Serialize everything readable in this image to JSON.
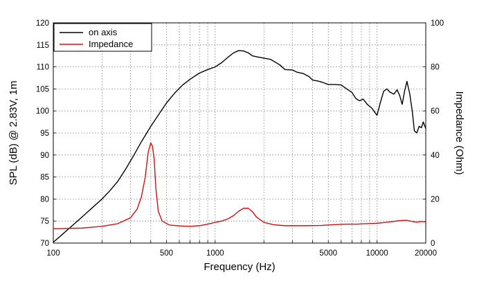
{
  "chart_data": {
    "type": "line",
    "title": "",
    "xlabel": "Frequency (Hz)",
    "ylabel_left": "SPL (dB) @ 2.83V, 1m",
    "ylabel_right": "Impedance (Ohm)",
    "x_scale": "log",
    "xlim": [
      100,
      20000
    ],
    "ylim_left": [
      70,
      120
    ],
    "ylim_right": [
      0,
      100
    ],
    "grid": true,
    "legend_placement": "top-left",
    "x_ticks": [
      100,
      500,
      1000,
      5000,
      10000,
      20000
    ],
    "x_tick_labels": [
      "100",
      "500",
      "1000",
      "5000",
      "10000",
      "20000"
    ],
    "y_left_ticks": [
      "70",
      "75",
      "80",
      "85",
      "90",
      "95",
      "100",
      "105",
      "110",
      "115",
      "120"
    ],
    "y_right_ticks": [
      "0",
      "20",
      "40",
      "60",
      "80",
      "100"
    ],
    "series": [
      {
        "name": "on axis",
        "axis": "left",
        "color": "#000000",
        "points": [
          [
            100,
            70.2
          ],
          [
            110,
            71.5
          ],
          [
            125,
            73.3
          ],
          [
            140,
            74.9
          ],
          [
            160,
            76.8
          ],
          [
            180,
            78.5
          ],
          [
            200,
            80.0
          ],
          [
            225,
            82.0
          ],
          [
            250,
            84.0
          ],
          [
            280,
            86.8
          ],
          [
            315,
            90.0
          ],
          [
            350,
            93.0
          ],
          [
            400,
            96.5
          ],
          [
            450,
            99.3
          ],
          [
            500,
            101.8
          ],
          [
            560,
            104.0
          ],
          [
            630,
            105.9
          ],
          [
            700,
            107.2
          ],
          [
            800,
            108.6
          ],
          [
            900,
            109.4
          ],
          [
            1000,
            110.0
          ],
          [
            1100,
            111.0
          ],
          [
            1200,
            112.2
          ],
          [
            1300,
            113.2
          ],
          [
            1400,
            113.7
          ],
          [
            1500,
            113.6
          ],
          [
            1600,
            113.2
          ],
          [
            1700,
            112.5
          ],
          [
            1800,
            112.3
          ],
          [
            2000,
            112.0
          ],
          [
            2200,
            111.7
          ],
          [
            2500,
            110.5
          ],
          [
            2700,
            109.4
          ],
          [
            3000,
            109.3
          ],
          [
            3200,
            108.8
          ],
          [
            3500,
            108.5
          ],
          [
            3800,
            107.8
          ],
          [
            4000,
            107.0
          ],
          [
            4300,
            106.8
          ],
          [
            4600,
            106.5
          ],
          [
            5000,
            106.0
          ],
          [
            5500,
            106.0
          ],
          [
            6000,
            105.9
          ],
          [
            6500,
            105.0
          ],
          [
            7000,
            104.2
          ],
          [
            7400,
            102.8
          ],
          [
            7800,
            102.3
          ],
          [
            8200,
            102.7
          ],
          [
            8700,
            101.5
          ],
          [
            9300,
            100.6
          ],
          [
            10000,
            99.0
          ],
          [
            10500,
            102.0
          ],
          [
            11000,
            104.5
          ],
          [
            11500,
            105.0
          ],
          [
            12000,
            104.3
          ],
          [
            12700,
            103.8
          ],
          [
            13300,
            104.8
          ],
          [
            13800,
            103.5
          ],
          [
            14300,
            101.5
          ],
          [
            14800,
            104.5
          ],
          [
            15300,
            106.7
          ],
          [
            15900,
            104.0
          ],
          [
            16500,
            100.0
          ],
          [
            17000,
            95.5
          ],
          [
            17600,
            95.0
          ],
          [
            18200,
            96.5
          ],
          [
            18800,
            96.2
          ],
          [
            19300,
            97.5
          ],
          [
            20000,
            96.0
          ]
        ]
      },
      {
        "name": "Impedance",
        "axis": "right",
        "color": "#d01010",
        "points": [
          [
            100,
            6.5
          ],
          [
            150,
            6.8
          ],
          [
            200,
            7.6
          ],
          [
            250,
            8.8
          ],
          [
            300,
            11.5
          ],
          [
            330,
            15.5
          ],
          [
            350,
            21.0
          ],
          [
            370,
            30.0
          ],
          [
            385,
            41.0
          ],
          [
            400,
            45.5
          ],
          [
            410,
            44.0
          ],
          [
            420,
            38.0
          ],
          [
            430,
            25.0
          ],
          [
            445,
            14.5
          ],
          [
            470,
            10.0
          ],
          [
            520,
            8.2
          ],
          [
            600,
            7.8
          ],
          [
            700,
            7.6
          ],
          [
            800,
            7.9
          ],
          [
            900,
            8.6
          ],
          [
            1000,
            9.4
          ],
          [
            1100,
            10.0
          ],
          [
            1200,
            11.0
          ],
          [
            1300,
            12.5
          ],
          [
            1400,
            14.5
          ],
          [
            1500,
            15.8
          ],
          [
            1600,
            15.8
          ],
          [
            1700,
            14.2
          ],
          [
            1800,
            11.8
          ],
          [
            2000,
            9.4
          ],
          [
            2300,
            8.3
          ],
          [
            2700,
            7.9
          ],
          [
            3500,
            7.9
          ],
          [
            4500,
            8.0
          ],
          [
            5500,
            8.4
          ],
          [
            6500,
            8.6
          ],
          [
            7500,
            8.6
          ],
          [
            8500,
            8.8
          ],
          [
            10000,
            9.0
          ],
          [
            11000,
            9.3
          ],
          [
            12000,
            9.6
          ],
          [
            13500,
            10.1
          ],
          [
            15000,
            10.4
          ],
          [
            16000,
            10.0
          ],
          [
            17500,
            9.5
          ],
          [
            19000,
            9.8
          ],
          [
            20000,
            9.6
          ]
        ]
      }
    ]
  }
}
